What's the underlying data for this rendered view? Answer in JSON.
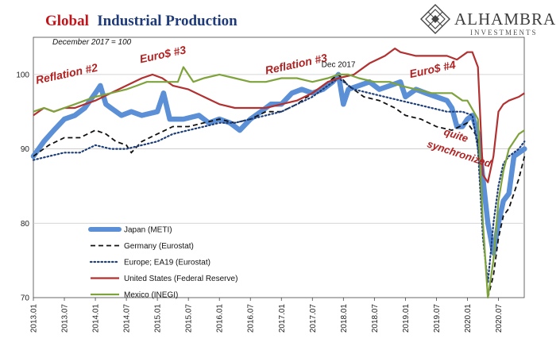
{
  "chart_data": {
    "type": "line",
    "title_part1": "Global",
    "title_part2": "Industrial Production",
    "subtitle": "December 2017 = 100",
    "brand": {
      "name": "ALHAMBRA",
      "tagline": "INVESTMENTS"
    },
    "ylim": [
      70,
      105
    ],
    "yticks": [
      70,
      80,
      90,
      100
    ],
    "xlim": [
      2013.0,
      2020.9167
    ],
    "xtick_labels": [
      "2013.01",
      "2013.07",
      "2014.01",
      "2014.07",
      "2015.01",
      "2015.07",
      "2016.01",
      "2016.07",
      "2017.01",
      "2017.07",
      "2018.01",
      "2018.07",
      "2019.01",
      "2019.07",
      "2020.01",
      "2020.07"
    ],
    "grid": "horizontal",
    "legend_position": "bottom-left",
    "annotations": [
      {
        "text": "Reflation #2",
        "x": 2013.55,
        "y": 99.6
      },
      {
        "text": "Euro$ #3",
        "x": 2015.1,
        "y": 102.2
      },
      {
        "text": "Reflation #3",
        "x": 2017.25,
        "y": 100.9
      },
      {
        "text": "Dec 2017",
        "x": 2017.92,
        "y": 101.0
      },
      {
        "text": "Euro$ #4",
        "x": 2019.45,
        "y": 100.2
      },
      {
        "text": "quite",
        "x": 2019.8,
        "y": 91.4
      },
      {
        "text": "synchronized",
        "x": 2019.85,
        "y": 88.9
      }
    ],
    "series": [
      {
        "name": "Japan (METI)",
        "color": "#5b8fd6",
        "style": "thick",
        "points": [
          [
            2013.0,
            89
          ],
          [
            2013.17,
            91
          ],
          [
            2013.33,
            92.5
          ],
          [
            2013.5,
            94
          ],
          [
            2013.67,
            94.5
          ],
          [
            2013.83,
            95.5
          ],
          [
            2014.0,
            97.5
          ],
          [
            2014.08,
            98.5
          ],
          [
            2014.17,
            96
          ],
          [
            2014.25,
            95.5
          ],
          [
            2014.42,
            94.5
          ],
          [
            2014.58,
            95
          ],
          [
            2014.75,
            94.5
          ],
          [
            2015.0,
            95
          ],
          [
            2015.1,
            97.5
          ],
          [
            2015.2,
            94
          ],
          [
            2015.42,
            94
          ],
          [
            2015.67,
            94.5
          ],
          [
            2015.83,
            93.5
          ],
          [
            2016.0,
            94
          ],
          [
            2016.17,
            93.5
          ],
          [
            2016.33,
            92.5
          ],
          [
            2016.5,
            94
          ],
          [
            2016.67,
            95
          ],
          [
            2016.83,
            96
          ],
          [
            2017.0,
            96
          ],
          [
            2017.17,
            97.5
          ],
          [
            2017.33,
            98
          ],
          [
            2017.5,
            97.5
          ],
          [
            2017.67,
            98
          ],
          [
            2017.83,
            99
          ],
          [
            2017.92,
            100
          ],
          [
            2018.0,
            96
          ],
          [
            2018.08,
            98
          ],
          [
            2018.25,
            98.5
          ],
          [
            2018.42,
            99
          ],
          [
            2018.58,
            98
          ],
          [
            2018.75,
            98.5
          ],
          [
            2018.92,
            99
          ],
          [
            2019.0,
            97
          ],
          [
            2019.17,
            98
          ],
          [
            2019.33,
            97.5
          ],
          [
            2019.5,
            97
          ],
          [
            2019.67,
            96.5
          ],
          [
            2019.75,
            95.5
          ],
          [
            2019.83,
            93
          ],
          [
            2019.92,
            93
          ],
          [
            2020.0,
            94
          ],
          [
            2020.08,
            94.5
          ],
          [
            2020.17,
            92
          ],
          [
            2020.25,
            86
          ],
          [
            2020.33,
            80
          ],
          [
            2020.42,
            76
          ],
          [
            2020.5,
            80
          ],
          [
            2020.58,
            83
          ],
          [
            2020.67,
            84
          ],
          [
            2020.75,
            89
          ],
          [
            2020.92,
            90
          ]
        ]
      },
      {
        "name": "Germany (Eurostat)",
        "color": "#111111",
        "style": "dashed",
        "points": [
          [
            2013.0,
            89
          ],
          [
            2013.25,
            90.5
          ],
          [
            2013.5,
            91.5
          ],
          [
            2013.75,
            91.5
          ],
          [
            2014.0,
            92.5
          ],
          [
            2014.17,
            92
          ],
          [
            2014.33,
            91
          ],
          [
            2014.5,
            90.5
          ],
          [
            2014.58,
            89.5
          ],
          [
            2014.75,
            91
          ],
          [
            2015.0,
            92
          ],
          [
            2015.25,
            93
          ],
          [
            2015.5,
            93
          ],
          [
            2015.75,
            93.5
          ],
          [
            2016.0,
            94
          ],
          [
            2016.25,
            93.5
          ],
          [
            2016.5,
            94
          ],
          [
            2016.75,
            95
          ],
          [
            2017.0,
            95
          ],
          [
            2017.25,
            96
          ],
          [
            2017.5,
            97.5
          ],
          [
            2017.75,
            99
          ],
          [
            2017.92,
            100
          ],
          [
            2018.08,
            98.5
          ],
          [
            2018.33,
            97
          ],
          [
            2018.58,
            96.5
          ],
          [
            2018.83,
            95.5
          ],
          [
            2019.0,
            94.5
          ],
          [
            2019.25,
            94
          ],
          [
            2019.5,
            93
          ],
          [
            2019.75,
            92.5
          ],
          [
            2020.0,
            93.5
          ],
          [
            2020.17,
            91.5
          ],
          [
            2020.25,
            80
          ],
          [
            2020.33,
            70
          ],
          [
            2020.42,
            73
          ],
          [
            2020.5,
            78
          ],
          [
            2020.58,
            81
          ],
          [
            2020.67,
            82
          ],
          [
            2020.83,
            86
          ],
          [
            2020.92,
            89
          ]
        ]
      },
      {
        "name": "Europe; EA19 (Eurostat)",
        "color": "#1f3f7a",
        "style": "dotted",
        "points": [
          [
            2013.0,
            88.5
          ],
          [
            2013.25,
            89
          ],
          [
            2013.5,
            89.5
          ],
          [
            2013.75,
            89.5
          ],
          [
            2014.0,
            90.5
          ],
          [
            2014.25,
            90
          ],
          [
            2014.5,
            90
          ],
          [
            2014.75,
            90.5
          ],
          [
            2015.0,
            91
          ],
          [
            2015.25,
            92
          ],
          [
            2015.5,
            92.5
          ],
          [
            2015.75,
            93
          ],
          [
            2016.0,
            93.5
          ],
          [
            2016.25,
            93.5
          ],
          [
            2016.5,
            94
          ],
          [
            2016.75,
            94.5
          ],
          [
            2017.0,
            95
          ],
          [
            2017.25,
            96
          ],
          [
            2017.5,
            97
          ],
          [
            2017.75,
            98.5
          ],
          [
            2017.92,
            99.5
          ],
          [
            2018.17,
            98
          ],
          [
            2018.42,
            97.5
          ],
          [
            2018.67,
            97
          ],
          [
            2018.92,
            96.5
          ],
          [
            2019.17,
            96
          ],
          [
            2019.42,
            95.5
          ],
          [
            2019.67,
            95
          ],
          [
            2019.92,
            95
          ],
          [
            2020.08,
            94.5
          ],
          [
            2020.17,
            90
          ],
          [
            2020.25,
            78
          ],
          [
            2020.33,
            72
          ],
          [
            2020.42,
            80
          ],
          [
            2020.5,
            85
          ],
          [
            2020.58,
            88
          ],
          [
            2020.67,
            89
          ],
          [
            2020.83,
            90
          ],
          [
            2020.92,
            91
          ]
        ]
      },
      {
        "name": "United States (Federal Reserve)",
        "color": "#b23030",
        "style": "solid",
        "points": [
          [
            2013.0,
            94.5
          ],
          [
            2013.17,
            95.5
          ],
          [
            2013.33,
            95
          ],
          [
            2013.5,
            95.5
          ],
          [
            2013.67,
            95.5
          ],
          [
            2013.83,
            96
          ],
          [
            2014.0,
            96.5
          ],
          [
            2014.25,
            97.5
          ],
          [
            2014.5,
            98.5
          ],
          [
            2014.75,
            99.5
          ],
          [
            2014.92,
            100
          ],
          [
            2015.08,
            99.5
          ],
          [
            2015.25,
            98.5
          ],
          [
            2015.5,
            98
          ],
          [
            2015.75,
            97
          ],
          [
            2016.0,
            96
          ],
          [
            2016.25,
            95.5
          ],
          [
            2016.5,
            95.5
          ],
          [
            2016.75,
            95.5
          ],
          [
            2017.0,
            96
          ],
          [
            2017.25,
            96.5
          ],
          [
            2017.5,
            97.5
          ],
          [
            2017.75,
            99
          ],
          [
            2017.92,
            99.5
          ],
          [
            2018.17,
            100
          ],
          [
            2018.42,
            101.5
          ],
          [
            2018.67,
            102.5
          ],
          [
            2018.83,
            103.5
          ],
          [
            2018.92,
            103
          ],
          [
            2019.17,
            102.5
          ],
          [
            2019.42,
            102.5
          ],
          [
            2019.67,
            102.5
          ],
          [
            2019.83,
            102
          ],
          [
            2020.0,
            103
          ],
          [
            2020.08,
            103
          ],
          [
            2020.17,
            101
          ],
          [
            2020.25,
            86.5
          ],
          [
            2020.33,
            85.5
          ],
          [
            2020.42,
            89
          ],
          [
            2020.5,
            95
          ],
          [
            2020.58,
            96
          ],
          [
            2020.67,
            96.5
          ],
          [
            2020.83,
            97
          ],
          [
            2020.92,
            97.5
          ]
        ]
      },
      {
        "name": "Mexico (INEGI)",
        "color": "#7fa33c",
        "style": "solid",
        "points": [
          [
            2013.0,
            95
          ],
          [
            2013.17,
            95.5
          ],
          [
            2013.33,
            95
          ],
          [
            2013.5,
            95.5
          ],
          [
            2013.67,
            96
          ],
          [
            2013.83,
            96.5
          ],
          [
            2014.0,
            97
          ],
          [
            2014.25,
            97.5
          ],
          [
            2014.5,
            98
          ],
          [
            2014.67,
            98.5
          ],
          [
            2014.83,
            99
          ],
          [
            2015.0,
            99
          ],
          [
            2015.17,
            99
          ],
          [
            2015.33,
            99
          ],
          [
            2015.42,
            101
          ],
          [
            2015.58,
            99
          ],
          [
            2015.75,
            99.5
          ],
          [
            2016.0,
            100
          ],
          [
            2016.25,
            99.5
          ],
          [
            2016.5,
            99
          ],
          [
            2016.75,
            99
          ],
          [
            2017.0,
            99.5
          ],
          [
            2017.25,
            99.5
          ],
          [
            2017.5,
            99
          ],
          [
            2017.75,
            99.5
          ],
          [
            2017.92,
            100
          ],
          [
            2018.08,
            100
          ],
          [
            2018.25,
            99.5
          ],
          [
            2018.5,
            99
          ],
          [
            2018.75,
            99
          ],
          [
            2018.92,
            98.5
          ],
          [
            2019.17,
            98
          ],
          [
            2019.42,
            97.5
          ],
          [
            2019.58,
            97.5
          ],
          [
            2019.75,
            97.5
          ],
          [
            2019.92,
            96.5
          ],
          [
            2020.0,
            96.5
          ],
          [
            2020.17,
            94
          ],
          [
            2020.25,
            80
          ],
          [
            2020.33,
            70
          ],
          [
            2020.42,
            75
          ],
          [
            2020.5,
            83
          ],
          [
            2020.58,
            87
          ],
          [
            2020.67,
            90
          ],
          [
            2020.83,
            92
          ],
          [
            2020.92,
            92.5
          ]
        ]
      }
    ]
  }
}
